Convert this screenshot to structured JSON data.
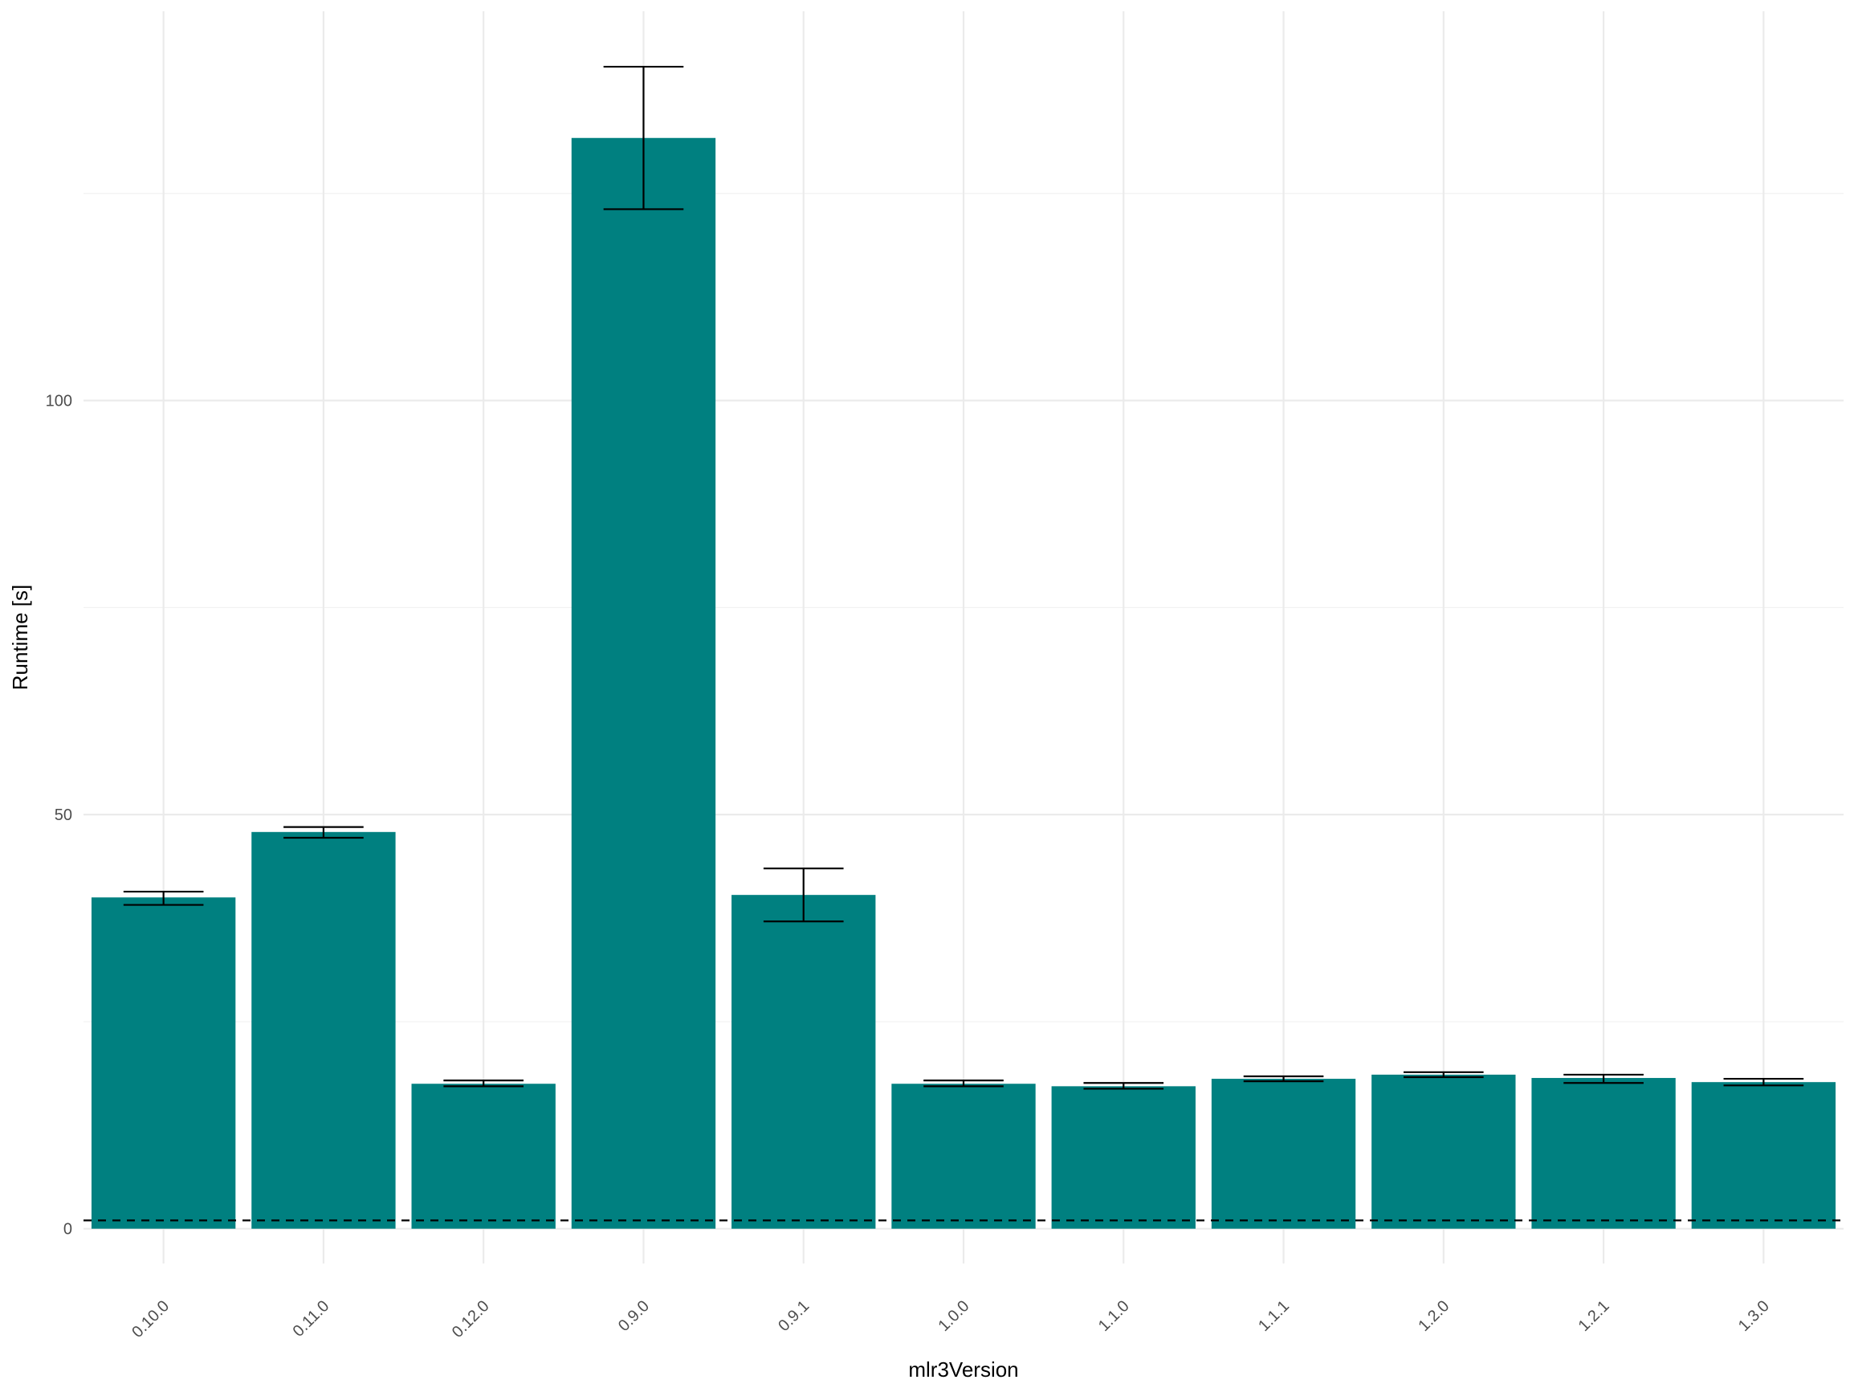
{
  "chart_data": {
    "type": "bar",
    "title": "",
    "xlabel": "mlr3Version",
    "ylabel": "Runtime [s]",
    "categories": [
      "0.10.0",
      "0.11.0",
      "0.12.0",
      "0.9.0",
      "0.9.1",
      "1.0.0",
      "1.1.0",
      "1.1.1",
      "1.2.0",
      "1.2.1",
      "1.3.0"
    ],
    "series": [
      {
        "values": [
          40.0,
          47.9,
          17.5,
          131.7,
          40.3,
          17.5,
          17.2,
          18.1,
          18.6,
          18.2,
          17.7
        ],
        "error_lower": [
          39.1,
          47.2,
          17.2,
          123.1,
          37.1,
          17.2,
          16.9,
          17.8,
          18.3,
          17.6,
          17.3
        ],
        "error_upper": [
          40.7,
          48.5,
          17.9,
          140.3,
          43.5,
          17.9,
          17.6,
          18.4,
          18.9,
          18.6,
          18.1
        ]
      }
    ],
    "yticks": [
      0,
      50,
      100
    ],
    "ytick_labels": [
      "0",
      "50",
      "100"
    ],
    "ylim": [
      -4.2,
      147
    ],
    "reference_line": {
      "y": 1.0,
      "style": "dashed",
      "color": "#000000"
    },
    "bar_color": "#008080",
    "grid": true,
    "legend": "none"
  }
}
